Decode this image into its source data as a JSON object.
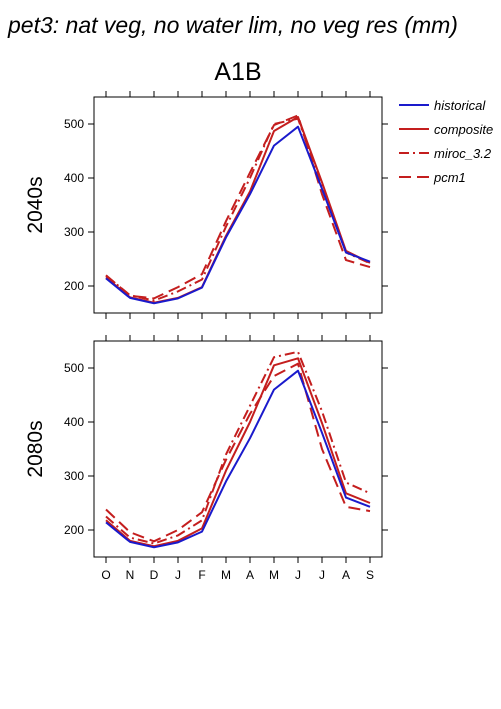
{
  "figure": {
    "title": "pet3: nat veg, no water lim, no veg res (mm)",
    "scenario": "A1B"
  },
  "colors": {
    "historical": "#1a1acc",
    "composite": "#c41e1e",
    "miroc_3.2": "#c41e1e",
    "pcm1": "#c41e1e"
  },
  "chart_data": [
    {
      "type": "line",
      "panel_label": "2040s",
      "categories": [
        "O",
        "N",
        "D",
        "J",
        "F",
        "M",
        "A",
        "M",
        "J",
        "J",
        "A",
        "S"
      ],
      "ylim": [
        150,
        550
      ],
      "yticks": [
        200,
        300,
        400,
        500
      ],
      "legend": "right",
      "series": [
        {
          "name": "historical",
          "style": "solid",
          "values": [
            214,
            178,
            168,
            177,
            197,
            290,
            370,
            460,
            495,
            380,
            262,
            245
          ]
        },
        {
          "name": "composite",
          "style": "solid",
          "values": [
            216,
            179,
            169,
            178,
            198,
            293,
            375,
            487,
            513,
            392,
            265,
            243
          ]
        },
        {
          "name": "miroc_3.2",
          "style": "dashdot",
          "values": [
            219,
            183,
            173,
            190,
            212,
            310,
            400,
            500,
            510,
            385,
            262,
            242
          ]
        },
        {
          "name": "pcm1",
          "style": "dashed",
          "values": [
            220,
            182,
            177,
            198,
            222,
            320,
            410,
            498,
            516,
            370,
            248,
            235
          ]
        }
      ]
    },
    {
      "type": "line",
      "panel_label": "2080s",
      "categories": [
        "O",
        "N",
        "D",
        "J",
        "F",
        "M",
        "A",
        "M",
        "J",
        "J",
        "A",
        "S"
      ],
      "ylim": [
        150,
        550
      ],
      "yticks": [
        200,
        300,
        400,
        500
      ],
      "series": [
        {
          "name": "historical",
          "style": "solid",
          "values": [
            214,
            178,
            168,
            177,
            197,
            290,
            370,
            460,
            495,
            380,
            260,
            243
          ]
        },
        {
          "name": "composite",
          "style": "solid",
          "values": [
            218,
            180,
            170,
            180,
            203,
            310,
            400,
            505,
            518,
            398,
            268,
            250
          ]
        },
        {
          "name": "miroc_3.2",
          "style": "dashdot",
          "values": [
            225,
            186,
            175,
            190,
            218,
            340,
            430,
            520,
            530,
            420,
            288,
            268
          ]
        },
        {
          "name": "pcm1",
          "style": "dashed",
          "values": [
            238,
            196,
            179,
            200,
            233,
            330,
            415,
            485,
            508,
            350,
            243,
            235
          ]
        }
      ]
    }
  ]
}
